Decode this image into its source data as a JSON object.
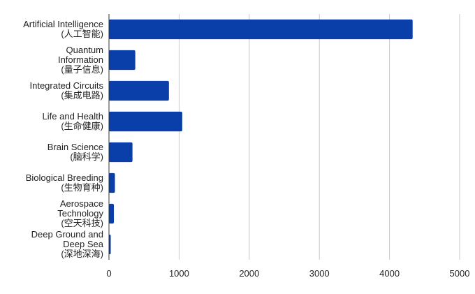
{
  "chart_data": {
    "type": "bar",
    "orientation": "horizontal",
    "categories": [
      [
        "Artificial Intelligence",
        "(人工智能)"
      ],
      [
        "Quantum",
        "Information",
        "(量子信息)"
      ],
      [
        "Integrated Circuits",
        "(集成电路)"
      ],
      [
        "Life and Health",
        "(生命健康)"
      ],
      [
        "Brain Science",
        "(脑科学)"
      ],
      [
        "Biological Breeding",
        "(生物育种)"
      ],
      [
        "Aerospace",
        "Technology",
        "(空天科技)"
      ],
      [
        "Deep Ground and",
        "Deep Sea",
        "(深地深海)"
      ]
    ],
    "values": [
      4330,
      375,
      855,
      1045,
      335,
      85,
      70,
      25
    ],
    "xlim": [
      0,
      5000
    ],
    "xticks": [
      0,
      1000,
      2000,
      3000,
      4000,
      5000
    ],
    "xtick_labels": [
      "0",
      "1000",
      "2000",
      "3000",
      "4000",
      "5000"
    ],
    "grid": true,
    "bar_color": "#0a3ea8",
    "title": "",
    "xlabel": "",
    "ylabel": ""
  }
}
